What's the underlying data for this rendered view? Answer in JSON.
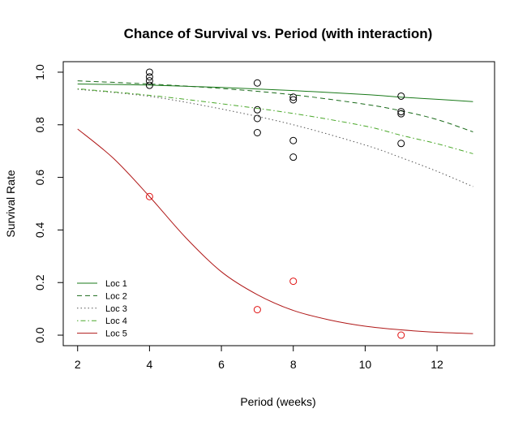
{
  "chart_data": {
    "type": "line",
    "title": "Chance of Survival vs. Period (with interaction)",
    "xlabel": "Period (weeks)",
    "ylabel": "Survival Rate",
    "xlim": [
      1.6,
      13.6
    ],
    "ylim": [
      -0.04,
      1.04
    ],
    "xticks": [
      2,
      4,
      6,
      8,
      10,
      12
    ],
    "yticks": [
      0.0,
      0.2,
      0.4,
      0.6,
      0.8,
      1.0
    ],
    "ytick_labels": [
      "0.0",
      "0.2",
      "0.4",
      "0.6",
      "0.8",
      "1.0"
    ],
    "grid": false,
    "legend_position": "bottom-left",
    "series": [
      {
        "name": "Loc 1",
        "style": "solid",
        "color": "#1a7a1a",
        "x": [
          2,
          4,
          6,
          8,
          10,
          11,
          12,
          13
        ],
        "y": [
          0.955,
          0.951,
          0.942,
          0.93,
          0.915,
          0.905,
          0.897,
          0.888
        ]
      },
      {
        "name": "Loc 2",
        "style": "dashed",
        "color": "#1a6a1a",
        "x": [
          2,
          4,
          6,
          8,
          10,
          11,
          12,
          13
        ],
        "y": [
          0.967,
          0.955,
          0.938,
          0.914,
          0.878,
          0.853,
          0.82,
          0.773
        ]
      },
      {
        "name": "Loc 3",
        "style": "dotted",
        "color": "#555555",
        "x": [
          2,
          4,
          6,
          8,
          10,
          11,
          12,
          13
        ],
        "y": [
          0.935,
          0.908,
          0.86,
          0.8,
          0.723,
          0.675,
          0.623,
          0.565
        ]
      },
      {
        "name": "Loc 4",
        "style": "dotdash",
        "color": "#4aa82a",
        "x": [
          2,
          4,
          6,
          8,
          10,
          11,
          12,
          13
        ],
        "y": [
          0.937,
          0.912,
          0.88,
          0.843,
          0.795,
          0.76,
          0.728,
          0.69
        ]
      },
      {
        "name": "Loc 5",
        "style": "solid",
        "color": "#b01818",
        "x": [
          2,
          3,
          4,
          5,
          6,
          7,
          8,
          9,
          10,
          11,
          12,
          13
        ],
        "y": [
          0.784,
          0.672,
          0.527,
          0.372,
          0.241,
          0.154,
          0.094,
          0.058,
          0.034,
          0.02,
          0.011,
          0.006
        ]
      }
    ],
    "points": [
      {
        "x": 4,
        "y": 1.0,
        "color": "#000000"
      },
      {
        "x": 4,
        "y": 0.982,
        "color": "#000000"
      },
      {
        "x": 4,
        "y": 0.967,
        "color": "#000000"
      },
      {
        "x": 4,
        "y": 0.95,
        "color": "#000000"
      },
      {
        "x": 7,
        "y": 0.959,
        "color": "#000000"
      },
      {
        "x": 7,
        "y": 0.857,
        "color": "#000000"
      },
      {
        "x": 7,
        "y": 0.824,
        "color": "#000000"
      },
      {
        "x": 7,
        "y": 0.77,
        "color": "#000000"
      },
      {
        "x": 8,
        "y": 0.905,
        "color": "#000000"
      },
      {
        "x": 8,
        "y": 0.895,
        "color": "#000000"
      },
      {
        "x": 8,
        "y": 0.74,
        "color": "#000000"
      },
      {
        "x": 8,
        "y": 0.677,
        "color": "#000000"
      },
      {
        "x": 11,
        "y": 0.909,
        "color": "#000000"
      },
      {
        "x": 11,
        "y": 0.85,
        "color": "#000000"
      },
      {
        "x": 11,
        "y": 0.842,
        "color": "#000000"
      },
      {
        "x": 11,
        "y": 0.729,
        "color": "#000000"
      },
      {
        "x": 4,
        "y": 0.527,
        "color": "#e01010"
      },
      {
        "x": 7,
        "y": 0.097,
        "color": "#e01010"
      },
      {
        "x": 8,
        "y": 0.205,
        "color": "#e01010"
      },
      {
        "x": 11,
        "y": 0.0,
        "color": "#e01010"
      }
    ]
  }
}
